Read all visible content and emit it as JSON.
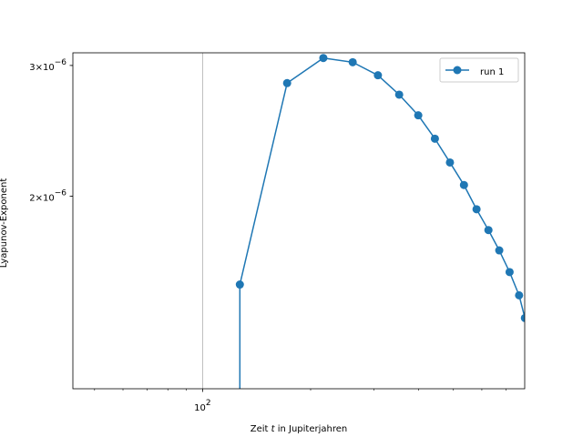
{
  "chart_data": {
    "type": "line",
    "xscale": "log",
    "yscale": "log",
    "xlim": [
      43.5,
      790
    ],
    "ylim": [
      1.1e-06,
      3.12e-06
    ],
    "xlabel_prefix": "Zeit ",
    "xlabel_var": "t",
    "xlabel_suffix": " in Jupiterjahren",
    "ylabel": "Lyapunov-Exponent",
    "x_ticks": [
      {
        "value": 100,
        "base": "10",
        "exp": "2"
      }
    ],
    "y_ticks": [
      {
        "value": 2e-06,
        "mant": "2×10",
        "exp": "−6"
      },
      {
        "value": 3e-06,
        "mant": "3×10",
        "exp": "−6"
      }
    ],
    "grid_x": [
      100
    ],
    "legend": {
      "position": "top-right"
    },
    "series": [
      {
        "name": "run 1",
        "color": "#1f77b4",
        "marker": "circle",
        "x": [
          127,
          127,
          172,
          217,
          262,
          308,
          353,
          399,
          444,
          489,
          535,
          580,
          626,
          671,
          717,
          762,
          791
        ],
        "y": [
          1e-06,
          1.52e-06,
          2.84e-06,
          3.07e-06,
          3.03e-06,
          2.91e-06,
          2.74e-06,
          2.57e-06,
          2.39e-06,
          2.22e-06,
          2.07e-06,
          1.92e-06,
          1.8e-06,
          1.69e-06,
          1.58e-06,
          1.47e-06,
          1.37e-06
        ],
        "markers_from_index": 1
      }
    ]
  }
}
